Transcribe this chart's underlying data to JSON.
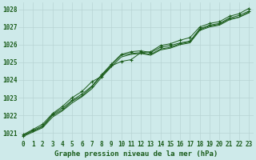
{
  "title": "Graphe pression niveau de la mer (hPa)",
  "background_color": "#ceeaea",
  "plot_background": "#ceeaea",
  "grid_color": "#b8d4d4",
  "line_color": "#1a5c1a",
  "x_labels": [
    "0",
    "1",
    "2",
    "3",
    "4",
    "5",
    "6",
    "7",
    "8",
    "9",
    "10",
    "11",
    "12",
    "13",
    "14",
    "15",
    "16",
    "17",
    "18",
    "19",
    "20",
    "21",
    "22",
    "23"
  ],
  "ylim": [
    1020.6,
    1028.4
  ],
  "xlim": [
    -0.5,
    23.5
  ],
  "yticks": [
    1021,
    1022,
    1023,
    1024,
    1025,
    1026,
    1027,
    1028
  ],
  "series": [
    [
      1020.9,
      1021.2,
      1021.5,
      1022.1,
      1022.5,
      1023.0,
      1023.35,
      1023.9,
      1024.2,
      1024.8,
      1025.05,
      1025.15,
      1025.55,
      1025.6,
      1025.95,
      1026.05,
      1026.25,
      1026.4,
      1027.0,
      1027.2,
      1027.3,
      1027.6,
      1027.75,
      1028.05
    ],
    [
      1020.85,
      1021.15,
      1021.4,
      1022.05,
      1022.4,
      1022.85,
      1023.2,
      1023.65,
      1024.3,
      1024.9,
      1025.45,
      1025.6,
      1025.65,
      1025.55,
      1025.85,
      1025.95,
      1026.1,
      1026.2,
      1026.9,
      1027.1,
      1027.2,
      1027.5,
      1027.65,
      1027.9
    ],
    [
      1020.85,
      1021.1,
      1021.35,
      1022.0,
      1022.3,
      1022.8,
      1023.1,
      1023.6,
      1024.25,
      1024.85,
      1025.4,
      1025.5,
      1025.55,
      1025.45,
      1025.75,
      1025.85,
      1026.05,
      1026.15,
      1026.85,
      1027.05,
      1027.15,
      1027.45,
      1027.55,
      1027.85
    ],
    [
      1020.8,
      1021.05,
      1021.3,
      1021.9,
      1022.25,
      1022.7,
      1023.05,
      1023.5,
      1024.15,
      1024.75,
      1025.3,
      1025.45,
      1025.5,
      1025.4,
      1025.7,
      1025.8,
      1026.0,
      1026.1,
      1026.8,
      1027.0,
      1027.1,
      1027.4,
      1027.55,
      1027.8
    ]
  ],
  "marker_series": [
    0,
    1
  ],
  "markers": [
    "+",
    "+"
  ],
  "tick_fontsize": 5.5,
  "label_fontsize": 6.5
}
